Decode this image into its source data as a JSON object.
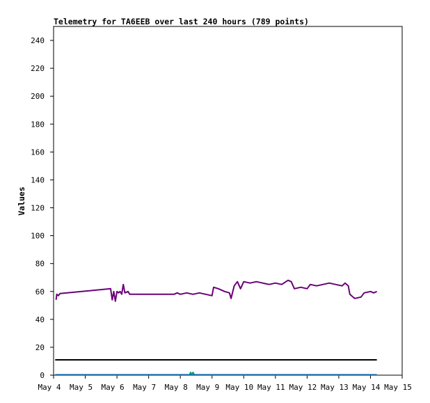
{
  "chart_data": {
    "type": "line",
    "title": "Telemetry for TA6EEB over last 240 hours (789 points)",
    "ylabel": "Values",
    "xlabel": "",
    "x_ticks": [
      "May 4",
      "May 5",
      "May 6",
      "May 7",
      "May 8",
      "May 9",
      "May 10",
      "May 11",
      "May 12",
      "May 13",
      "May 14",
      "May 15"
    ],
    "xlim_days": [
      4,
      15
    ],
    "y_ticks": [
      0,
      20,
      40,
      60,
      80,
      100,
      120,
      140,
      160,
      180,
      200,
      220,
      240
    ],
    "ylim": [
      0,
      250
    ],
    "grid": false,
    "colors": {
      "purple": "#6a0078",
      "black": "#000000",
      "green": "#00a060",
      "blue": "#2060c0"
    },
    "series": [
      {
        "color": "#6a0078",
        "points": [
          [
            4.08,
            54
          ],
          [
            4.1,
            58
          ],
          [
            4.15,
            57
          ],
          [
            4.2,
            58.5
          ],
          [
            5.8,
            62
          ],
          [
            5.85,
            54
          ],
          [
            5.9,
            60
          ],
          [
            5.95,
            53
          ],
          [
            6.0,
            60
          ],
          [
            6.05,
            59
          ],
          [
            6.1,
            60
          ],
          [
            6.15,
            58
          ],
          [
            6.2,
            65
          ],
          [
            6.25,
            59
          ],
          [
            6.35,
            60
          ],
          [
            6.4,
            58
          ],
          [
            7.8,
            58
          ],
          [
            7.9,
            59
          ],
          [
            8.0,
            58
          ],
          [
            8.2,
            59
          ],
          [
            8.4,
            58
          ],
          [
            8.6,
            59
          ],
          [
            8.8,
            58
          ],
          [
            9.0,
            57
          ],
          [
            9.05,
            63
          ],
          [
            9.2,
            62
          ],
          [
            9.4,
            60
          ],
          [
            9.55,
            59
          ],
          [
            9.6,
            55
          ],
          [
            9.7,
            64
          ],
          [
            9.8,
            67
          ],
          [
            9.9,
            62
          ],
          [
            10.0,
            67
          ],
          [
            10.2,
            66
          ],
          [
            10.4,
            67
          ],
          [
            10.6,
            66
          ],
          [
            10.8,
            65
          ],
          [
            11.0,
            66
          ],
          [
            11.2,
            65
          ],
          [
            11.4,
            68
          ],
          [
            11.5,
            67
          ],
          [
            11.6,
            62
          ],
          [
            11.8,
            63
          ],
          [
            12.0,
            62
          ],
          [
            12.1,
            65
          ],
          [
            12.3,
            64
          ],
          [
            12.5,
            65
          ],
          [
            12.7,
            66
          ],
          [
            12.9,
            65
          ],
          [
            13.1,
            64
          ],
          [
            13.2,
            66
          ],
          [
            13.3,
            64
          ],
          [
            13.35,
            58
          ],
          [
            13.5,
            55
          ],
          [
            13.7,
            56
          ],
          [
            13.8,
            59
          ],
          [
            14.0,
            60
          ],
          [
            14.1,
            59
          ],
          [
            14.2,
            60
          ]
        ]
      },
      {
        "color": "#000000",
        "points": [
          [
            4.05,
            11
          ],
          [
            14.2,
            11
          ]
        ]
      },
      {
        "color": "#00a060",
        "points": [
          [
            4.05,
            0.3
          ],
          [
            8.3,
            0.3
          ],
          [
            8.32,
            2
          ],
          [
            8.36,
            0.5
          ],
          [
            8.4,
            2
          ],
          [
            8.44,
            0.3
          ],
          [
            14.2,
            0.3
          ]
        ]
      },
      {
        "color": "#2060c0",
        "points": [
          [
            4.05,
            0.1
          ],
          [
            14.2,
            0.1
          ]
        ]
      }
    ]
  }
}
